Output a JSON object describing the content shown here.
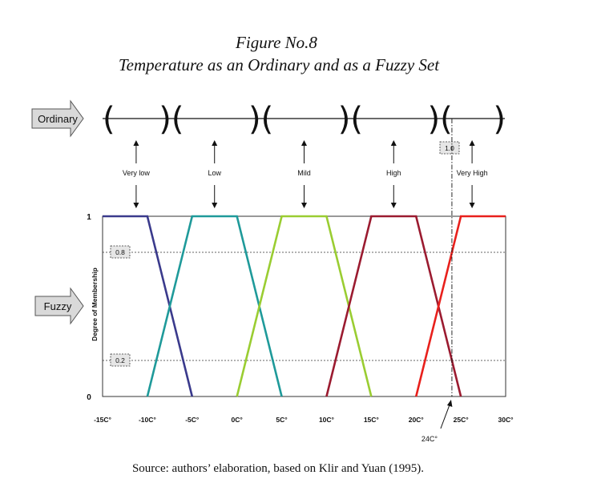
{
  "figure": {
    "title": "Figure No.8",
    "subtitle": "Temperature as an Ordinary and as a Fuzzy Set",
    "source": "Source: authors’ elaboration, based on Klir and Yuan (1995)."
  },
  "side_labels": {
    "ordinary": "Ordinary",
    "fuzzy": "Fuzzy"
  },
  "ordinary_marker_label": "1.0",
  "chart_data": {
    "type": "line",
    "title": "",
    "xlabel": "",
    "ylabel": "Degree of Membership",
    "xlim": [
      -15,
      30
    ],
    "ylim": [
      0,
      1
    ],
    "x_ticks": [
      -15,
      -10,
      -5,
      0,
      5,
      10,
      15,
      20,
      25,
      30
    ],
    "x_tick_labels": [
      "-15C°",
      "-10C°",
      "-5C°",
      "0C°",
      "5C°",
      "10C°",
      "15C°",
      "20C°",
      "25C°",
      "30C°"
    ],
    "y_tick_labels": [
      "0",
      "1"
    ],
    "reference_levels": [
      {
        "value": 0.8,
        "label": "0.8"
      },
      {
        "value": 0.2,
        "label": "0.2"
      }
    ],
    "marker": {
      "x": 24,
      "label": "24C°"
    },
    "grid": false,
    "series": [
      {
        "name": "Very low",
        "color": "#3a3a8c",
        "x": [
          -15,
          -10,
          -5
        ],
        "y": [
          1,
          1,
          0
        ]
      },
      {
        "name": "Low",
        "color": "#1f9a9a",
        "x": [
          -10,
          -5,
          0,
          5
        ],
        "y": [
          0,
          1,
          1,
          0
        ]
      },
      {
        "name": "Mild",
        "color": "#9acd32",
        "x": [
          0,
          5,
          10,
          15
        ],
        "y": [
          0,
          1,
          1,
          0
        ]
      },
      {
        "name": "High",
        "color": "#9b1b30",
        "x": [
          10,
          15,
          20,
          25
        ],
        "y": [
          0,
          1,
          1,
          0
        ]
      },
      {
        "name": "Very High",
        "color": "#e8201c",
        "x": [
          20,
          25,
          30
        ],
        "y": [
          0,
          1,
          1
        ]
      }
    ]
  }
}
